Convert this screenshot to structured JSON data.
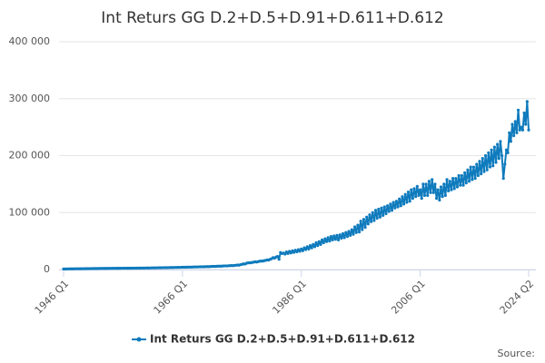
{
  "chart_data": {
    "type": "line",
    "title": "Int Returs GG D.2+D.5+D.91+D.611+D.612",
    "source": "Source:",
    "categories": [
      "1946 Q1",
      null,
      null,
      null,
      null,
      null,
      null,
      null,
      null,
      null,
      null,
      null,
      null,
      null,
      null,
      null,
      null,
      null,
      null,
      null,
      null,
      null,
      null,
      null,
      null,
      null,
      null,
      null,
      null,
      null,
      null,
      null,
      null,
      null,
      null,
      null,
      null,
      null,
      null,
      null,
      null,
      null,
      null,
      null,
      null,
      null,
      null,
      null,
      null,
      null,
      null,
      null,
      null,
      null,
      null,
      null,
      null,
      null,
      null,
      null,
      null,
      null,
      null,
      null,
      null,
      null,
      null,
      null,
      null,
      null,
      null,
      null,
      null,
      null,
      null,
      null,
      null,
      null,
      null,
      null,
      "1966 Q1",
      null,
      null,
      null,
      null,
      null,
      null,
      null,
      null,
      null,
      null,
      null,
      null,
      null,
      null,
      null,
      null,
      null,
      null,
      null,
      null,
      null,
      null,
      null,
      null,
      null,
      null,
      null,
      null,
      null,
      null,
      null,
      null,
      null,
      null,
      null,
      null,
      null,
      null,
      null,
      null,
      null,
      null,
      null,
      null,
      null,
      null,
      null,
      null,
      null,
      null,
      null,
      null,
      null,
      null,
      null,
      null,
      null,
      null,
      null,
      null,
      null,
      null,
      null,
      null,
      null,
      null,
      null,
      null,
      null,
      null,
      null,
      null,
      null,
      null,
      null,
      null,
      null,
      null,
      null,
      "1986 Q1",
      null,
      null,
      null,
      null,
      null,
      null,
      null,
      null,
      null,
      null,
      null,
      null,
      null,
      null,
      null,
      null,
      null,
      null,
      null,
      null,
      null,
      null,
      null,
      null,
      null,
      null,
      null,
      null,
      null,
      null,
      null,
      null,
      null,
      null,
      null,
      null,
      null,
      null,
      null,
      null,
      null,
      null,
      null,
      null,
      null,
      null,
      null,
      null,
      null,
      null,
      null,
      null,
      null,
      null,
      null,
      null,
      null,
      null,
      null,
      null,
      null,
      null,
      null,
      null,
      null,
      null,
      null,
      null,
      null,
      null,
      null,
      null,
      null,
      null,
      null,
      null,
      null,
      null,
      null,
      "2006 Q1",
      null,
      null,
      null,
      null,
      null,
      null,
      null,
      null,
      null,
      null,
      null,
      null,
      null,
      null,
      null,
      null,
      null,
      null,
      null,
      null,
      null,
      null,
      null,
      null,
      null,
      null,
      null,
      null,
      null,
      null,
      null,
      null,
      null,
      null,
      null,
      null,
      null,
      null,
      null,
      null,
      null,
      null,
      null,
      null,
      null,
      null,
      null,
      null,
      null,
      null,
      null,
      null,
      null,
      null,
      null,
      null,
      null,
      null,
      null,
      null,
      null,
      null,
      null,
      null,
      null,
      null,
      null,
      null,
      null,
      null,
      null,
      null,
      "2024 Q2"
    ],
    "series": [
      {
        "name": "Int Returs GG D.2+D.5+D.91+D.611+D.612",
        "color": "#0f7bbd",
        "values": [
          1000,
          1050,
          1000,
          1100,
          1150,
          1200,
          1150,
          1250,
          1300,
          1350,
          1300,
          1400,
          1450,
          1500,
          1450,
          1550,
          1600,
          1650,
          1600,
          1700,
          1750,
          1800,
          1750,
          1850,
          1900,
          1950,
          1900,
          2000,
          2000,
          2050,
          2000,
          2100,
          2100,
          2150,
          2100,
          2200,
          2200,
          2250,
          2200,
          2300,
          2300,
          2350,
          2300,
          2400,
          2400,
          2450,
          2400,
          2500,
          2500,
          2550,
          2500,
          2600,
          2600,
          2650,
          2600,
          2700,
          2700,
          2800,
          2700,
          2900,
          2900,
          3000,
          2900,
          3100,
          3100,
          3200,
          3100,
          3300,
          3300,
          3400,
          3300,
          3500,
          3500,
          3600,
          3500,
          3700,
          3700,
          3800,
          3700,
          3900,
          4000,
          4100,
          4000,
          4200,
          4200,
          4300,
          4200,
          4400,
          4500,
          4600,
          4500,
          4700,
          4800,
          4900,
          4800,
          5000,
          5000,
          5200,
          5000,
          5400,
          5400,
          5600,
          5400,
          5800,
          5800,
          6000,
          5800,
          6200,
          6300,
          6500,
          6300,
          6700,
          6800,
          7000,
          6800,
          7300,
          7500,
          8000,
          7600,
          8500,
          9000,
          10000,
          9500,
          11000,
          11500,
          12000,
          11800,
          12500,
          13000,
          13500,
          13200,
          14000,
          14500,
          15000,
          14800,
          15500,
          16000,
          17000,
          16500,
          18000,
          19000,
          21000,
          20000,
          22000,
          23000,
          18000,
          30000,
          28000,
          29000,
          27000,
          31000,
          28000,
          32000,
          29000,
          33000,
          30000,
          34000,
          31000,
          35000,
          32000,
          36000,
          33000,
          38000,
          35000,
          40000,
          36000,
          42000,
          38000,
          44000,
          40000,
          47000,
          42000,
          49000,
          44000,
          52000,
          47000,
          54000,
          49000,
          56000,
          50000,
          58000,
          52000,
          59000,
          53000,
          60000,
          52000,
          61000,
          55000,
          63000,
          56000,
          65000,
          58000,
          67000,
          60000,
          70000,
          62000,
          75000,
          65000,
          78000,
          66000,
          85000,
          70000,
          88000,
          74000,
          92000,
          80000,
          96000,
          84000,
          100000,
          86000,
          104000,
          90000,
          106000,
          92000,
          108000,
          95000,
          110000,
          98000,
          112000,
          102000,
          115000,
          104000,
          118000,
          108000,
          120000,
          110000,
          124000,
          112000,
          128000,
          115000,
          132000,
          118000,
          136000,
          120000,
          140000,
          125000,
          142000,
          128000,
          146000,
          130000,
          140000,
          125000,
          150000,
          130000,
          150000,
          130000,
          155000,
          135000,
          158000,
          135000,
          150000,
          125000,
          140000,
          122000,
          145000,
          128000,
          150000,
          130000,
          158000,
          138000,
          155000,
          140000,
          160000,
          142000,
          160000,
          145000,
          165000,
          148000,
          165000,
          148000,
          170000,
          152000,
          175000,
          155000,
          180000,
          158000,
          180000,
          160000,
          185000,
          165000,
          190000,
          168000,
          195000,
          172000,
          200000,
          175000,
          205000,
          180000,
          210000,
          182000,
          215000,
          188000,
          220000,
          195000,
          225000,
          200000,
          160000,
          185000,
          210000,
          205000,
          240000,
          225000,
          255000,
          235000,
          260000,
          240000,
          280000,
          245000,
          250000,
          245000,
          275000,
          255000,
          295000,
          245000
        ]
      }
    ],
    "ylim": [
      0,
      400000
    ],
    "yticks": [
      0,
      {
        "value": 100000,
        "label": "100 000"
      },
      {
        "value": 200000,
        "label": "200 000"
      },
      {
        "value": 300000,
        "label": "300 000"
      },
      {
        "value": 400000,
        "label": "400 000"
      }
    ],
    "grid": true
  }
}
